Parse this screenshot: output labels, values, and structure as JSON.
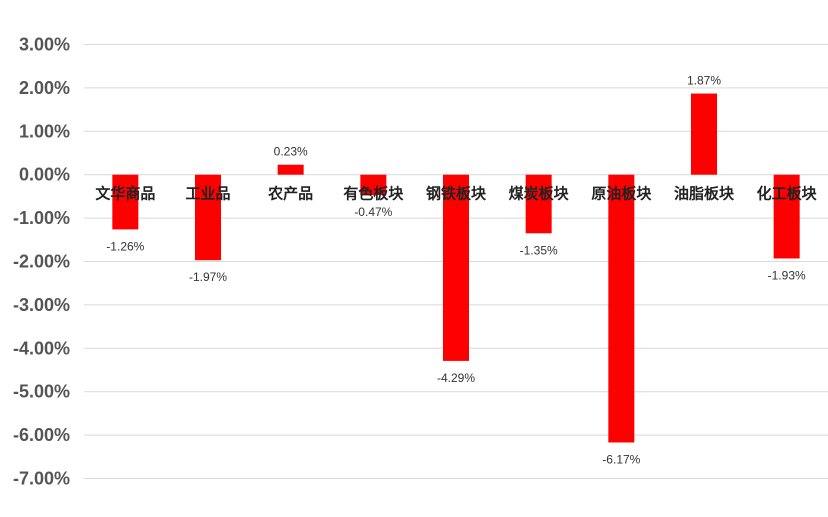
{
  "chart_data": {
    "type": "bar",
    "categories": [
      "文华商品",
      "工业品",
      "农产品",
      "有色板块",
      "钢铁板块",
      "煤炭板块",
      "原油板块",
      "油脂板块",
      "化工板块"
    ],
    "values": [
      -1.26,
      -1.97,
      0.23,
      -0.47,
      -4.29,
      -1.35,
      -6.17,
      1.87,
      -1.93
    ],
    "value_labels": [
      "-1.26%",
      "-1.97%",
      "0.23%",
      "-0.47%",
      "-4.29%",
      "-1.35%",
      "-6.17%",
      "1.87%",
      "-1.93%"
    ],
    "y_ticks": [
      3,
      2,
      1,
      0,
      -1,
      -2,
      -3,
      -4,
      -5,
      -6,
      -7
    ],
    "y_tick_labels": [
      "3.00%",
      "2.00%",
      "1.00%",
      "0.00%",
      "-1.00%",
      "-2.00%",
      "-3.00%",
      "-4.00%",
      "-5.00%",
      "-6.00%",
      "-7.00%"
    ],
    "ylim": [
      -7,
      3
    ],
    "grid": true,
    "legend": "none",
    "bar_color": "#ff0000"
  }
}
